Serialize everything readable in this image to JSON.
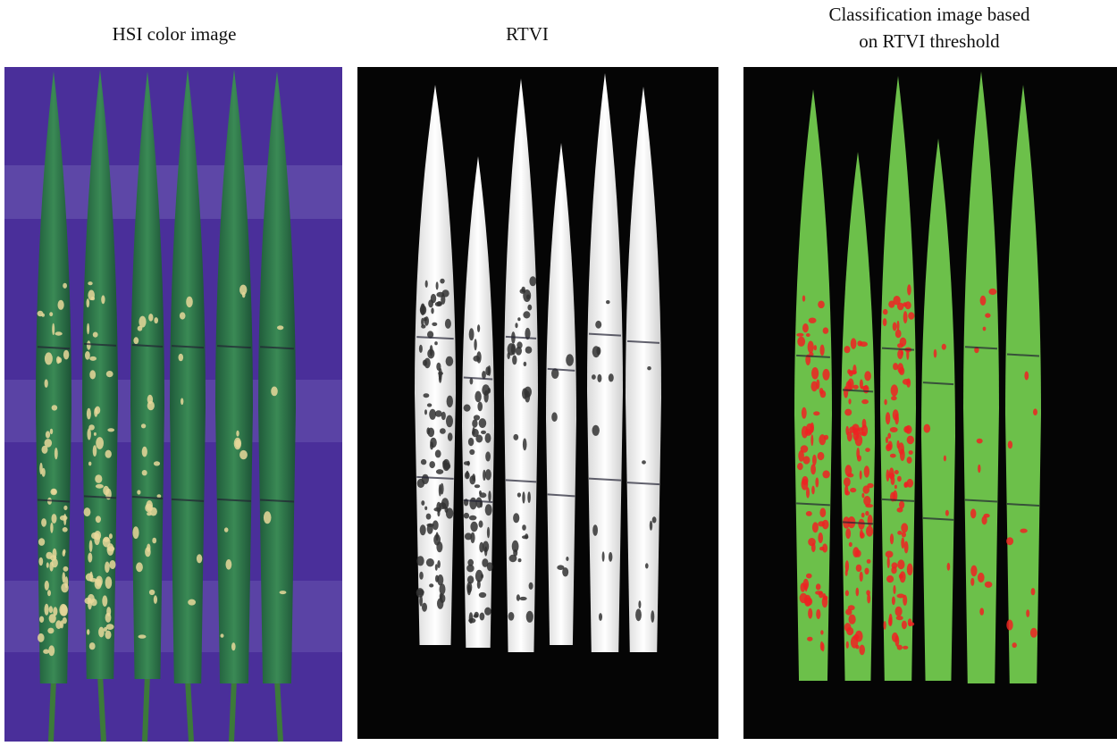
{
  "panels": [
    {
      "title": [
        "HSI color image"
      ]
    },
    {
      "title": [
        "RTVI"
      ]
    },
    {
      "title": [
        "Classification image based",
        "on RTVI  threshold"
      ]
    }
  ]
}
